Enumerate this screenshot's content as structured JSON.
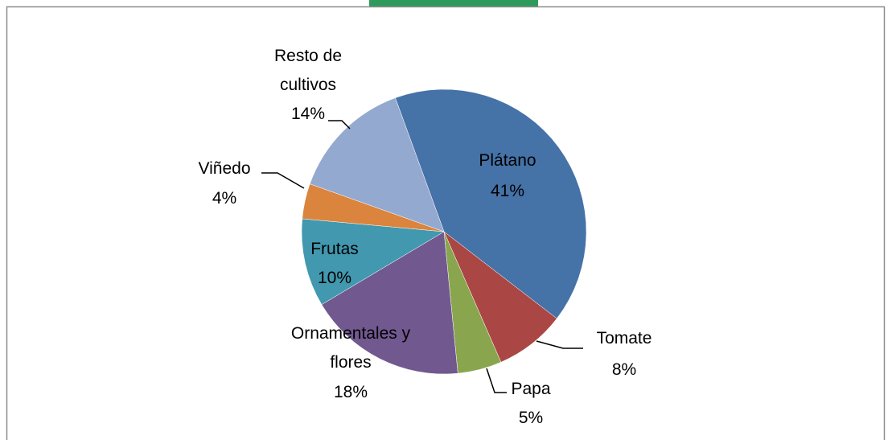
{
  "chart_data": {
    "type": "pie",
    "categories": [
      "Plátano",
      "Tomate",
      "Papa",
      "Ornamentales y flores",
      "Frutas",
      "Viñedo",
      "Resto de cultivos"
    ],
    "values": [
      41,
      8,
      5,
      18,
      10,
      4,
      14
    ],
    "value_labels": [
      "41%",
      "8%",
      "5%",
      "18%",
      "10%",
      "4%",
      "14%"
    ],
    "colors": [
      "#4572a7",
      "#aa4643",
      "#89a54e",
      "#71588f",
      "#4198af",
      "#db843d",
      "#93a9cf"
    ]
  }
}
